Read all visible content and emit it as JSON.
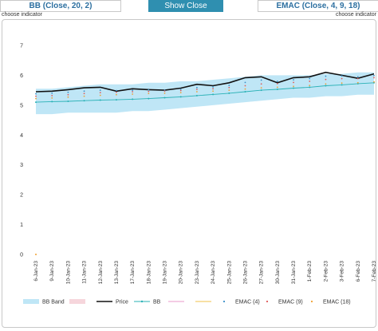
{
  "controls": {
    "bb_label": "BB (Close, 20, 2)",
    "show_label": "Show Close",
    "emac_label": "EMAC (Close, 4, 9, 18)",
    "hint_left": "choose indicator",
    "hint_right": "choose indicator"
  },
  "colors": {
    "band": "#bfe6f6",
    "price": "#111111",
    "bb": "#2ab1b6",
    "emac4": "#3a8fc9",
    "emac9": "#e05a5a",
    "emac18": "#f0a030",
    "button": "#2f8fb0"
  },
  "chart_data": {
    "type": "line",
    "title": "",
    "xlabel": "",
    "ylabel": "",
    "ylim": [
      0,
      7
    ],
    "yticks": [
      0,
      1,
      2,
      3,
      4,
      5,
      6,
      7
    ],
    "grid": false,
    "legend_placement": "bottom",
    "categories": [
      "6-Jan-23",
      "9-Jan-23",
      "10-Jan-23",
      "11-Jan-23",
      "12-Jan-23",
      "13-Jan-23",
      "17-Jan-23",
      "18-Jan-23",
      "19-Jan-23",
      "20-Jan-23",
      "23-Jan-23",
      "24-Jan-23",
      "25-Jan-23",
      "26-Jan-23",
      "27-Jan-23",
      "30-Jan-23",
      "31-Jan-23",
      "1-Feb-23",
      "2-Feb-23",
      "3-Feb-23",
      "6-Feb-23",
      "7-Feb-23"
    ],
    "band_upper": [
      5.55,
      5.55,
      5.6,
      5.65,
      5.7,
      5.7,
      5.7,
      5.75,
      5.75,
      5.8,
      5.8,
      5.85,
      5.9,
      5.95,
      6.0,
      6.0,
      6.0,
      6.0,
      6.05,
      6.05,
      6.1,
      6.1
    ],
    "band_lower": [
      4.7,
      4.7,
      4.75,
      4.75,
      4.75,
      4.75,
      4.8,
      4.8,
      4.85,
      4.9,
      4.95,
      5.0,
      5.05,
      5.1,
      5.15,
      5.2,
      5.25,
      5.25,
      5.3,
      5.3,
      5.35,
      5.35
    ],
    "series": [
      {
        "name": "Price",
        "values": [
          5.45,
          5.47,
          5.52,
          5.58,
          5.6,
          5.47,
          5.55,
          5.52,
          5.5,
          5.57,
          5.7,
          5.65,
          5.75,
          5.92,
          5.95,
          5.75,
          5.92,
          5.95,
          6.1,
          6.0,
          5.9,
          6.05
        ]
      },
      {
        "name": "BB",
        "values": [
          5.1,
          5.12,
          5.13,
          5.15,
          5.17,
          5.18,
          5.2,
          5.22,
          5.25,
          5.28,
          5.32,
          5.36,
          5.4,
          5.45,
          5.5,
          5.53,
          5.57,
          5.6,
          5.65,
          5.68,
          5.72,
          5.75
        ]
      },
      {
        "name": "EMAC (4)",
        "values": [
          5.38,
          5.4,
          5.43,
          5.47,
          5.5,
          5.49,
          5.5,
          5.51,
          5.5,
          5.53,
          5.59,
          5.61,
          5.66,
          5.76,
          5.84,
          5.8,
          5.85,
          5.89,
          5.97,
          5.98,
          5.95,
          5.99
        ]
      },
      {
        "name": "EMAC (9)",
        "values": [
          5.3,
          5.32,
          5.35,
          5.39,
          5.42,
          5.43,
          5.45,
          5.46,
          5.47,
          5.49,
          5.53,
          5.55,
          5.59,
          5.65,
          5.71,
          5.72,
          5.76,
          5.8,
          5.86,
          5.89,
          5.89,
          5.92
        ]
      },
      {
        "name": "EMAC (18)",
        "values": [
          5.22,
          5.24,
          5.27,
          5.3,
          5.33,
          5.35,
          5.37,
          5.39,
          5.4,
          5.42,
          5.45,
          5.47,
          5.5,
          5.54,
          5.58,
          5.6,
          5.63,
          5.66,
          5.71,
          5.74,
          5.75,
          5.78
        ]
      }
    ],
    "extra_points": [
      {
        "series": "EMAC (18)",
        "x": "6-Jan-23",
        "y": 0
      }
    ],
    "legend": [
      "BB Band",
      "",
      "Price",
      "BB",
      "",
      "",
      "EMAC (4)",
      "EMAC (9)",
      "EMAC (18)"
    ]
  }
}
